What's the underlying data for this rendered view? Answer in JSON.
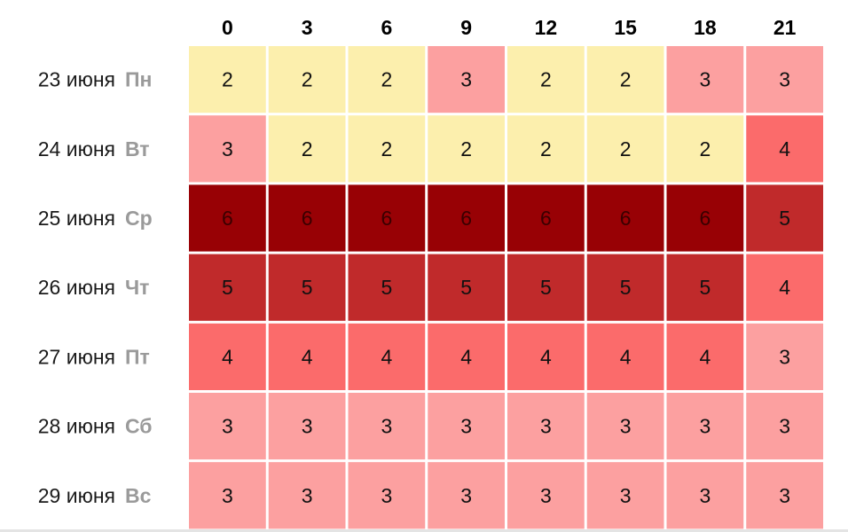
{
  "chart_data": {
    "type": "heatmap",
    "columns": [
      "0",
      "3",
      "6",
      "9",
      "12",
      "15",
      "18",
      "21"
    ],
    "rows": [
      {
        "date": "23 июня",
        "weekday": "Пн",
        "values": [
          2,
          2,
          2,
          3,
          2,
          2,
          3,
          3
        ]
      },
      {
        "date": "24 июня",
        "weekday": "Вт",
        "values": [
          3,
          2,
          2,
          2,
          2,
          2,
          2,
          4
        ]
      },
      {
        "date": "25 июня",
        "weekday": "Ср",
        "values": [
          6,
          6,
          6,
          6,
          6,
          6,
          6,
          5
        ]
      },
      {
        "date": "26 июня",
        "weekday": "Чт",
        "values": [
          5,
          5,
          5,
          5,
          5,
          5,
          5,
          4
        ]
      },
      {
        "date": "27 июня",
        "weekday": "Пт",
        "values": [
          4,
          4,
          4,
          4,
          4,
          4,
          4,
          3
        ]
      },
      {
        "date": "28 июня",
        "weekday": "Сб",
        "values": [
          3,
          3,
          3,
          3,
          3,
          3,
          3,
          3
        ]
      },
      {
        "date": "29 июня",
        "weekday": "Вс",
        "values": [
          3,
          3,
          3,
          3,
          3,
          3,
          3,
          3
        ]
      }
    ],
    "colors": {
      "2": "#fcefad",
      "3": "#fca0a0",
      "4": "#fb6b6b",
      "5": "#c02a2b",
      "6": "#980105"
    },
    "value_text_colors": {
      "2": "#111111",
      "3": "#111111",
      "4": "#111111",
      "5": "#111111",
      "6": "#3a0000"
    },
    "grid": false,
    "legend": "none"
  }
}
